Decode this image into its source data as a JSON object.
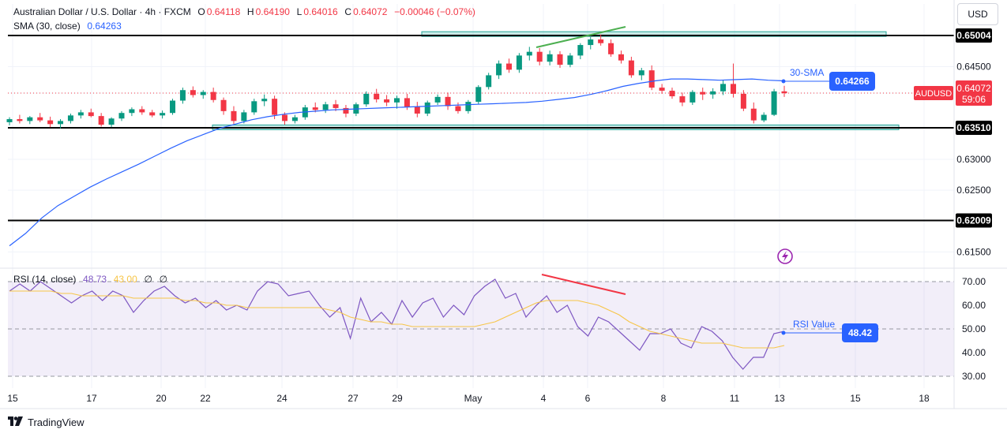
{
  "header": {
    "symbol_name": "Australian Dollar / U.S. Dollar · 4h · FXCM",
    "o_label": "O",
    "o_value": "0.64118",
    "h_label": "H",
    "h_value": "0.64190",
    "l_label": "L",
    "l_value": "0.64016",
    "c_label": "C",
    "c_value": "0.64072",
    "change": "−0.00046 (−0.07%)",
    "sma_label": "SMA (30, close)",
    "sma_value": "0.64263",
    "rsi_label": "RSI (14, close)",
    "rsi_value": "48.73",
    "rsi_ma_value": "43.00",
    "rsi_extra1": "∅",
    "rsi_extra2": "∅"
  },
  "currency_unit": "USD",
  "brand": "TradingView",
  "colors": {
    "up": "#089981",
    "down": "#f23645",
    "sma": "#2962ff",
    "rsi": "#7e57c2",
    "rsi_ma": "#f7c548",
    "divergence_green": "#4caf50",
    "divergence_red": "#f23645",
    "zone": "#26a69a",
    "tag_blue": "#2962ff"
  },
  "chart_data": [
    {
      "type": "candlestick",
      "title": "Australian Dollar / U.S. Dollar · 4h · FXCM",
      "ylim": [
        0.6118,
        0.654
      ],
      "y_ticks": [
        "0.65004",
        "0.64500",
        "0.64072",
        "0.63510",
        "0.63000",
        "0.62500",
        "0.62009",
        "0.61500"
      ],
      "x_ticks": [
        "15",
        "17",
        "20",
        "22",
        "24",
        "27",
        "29",
        "May",
        "4",
        "6",
        "8",
        "11",
        "13",
        "15",
        "18"
      ],
      "last_price_label": "AUDUSD",
      "last_price": "0.64072",
      "countdown": "59:06",
      "horizontal_levels": [
        {
          "value": 0.65004,
          "label": "0.65004"
        },
        {
          "value": 0.6351,
          "label": "0.63510"
        },
        {
          "value": 0.62009,
          "label": "0.62009"
        }
      ],
      "zones": [
        {
          "from": 0.6499,
          "to": 0.6504
        },
        {
          "from": 0.6348,
          "to": 0.6353
        }
      ],
      "annotations": [
        {
          "text": "30-SMA",
          "value_tag": "0.64266"
        }
      ],
      "sma_30": [
        0.616,
        0.618,
        0.6205,
        0.6225,
        0.624,
        0.6255,
        0.6268,
        0.628,
        0.6292,
        0.6305,
        0.6318,
        0.633,
        0.634,
        0.635,
        0.6357,
        0.6364,
        0.6369,
        0.6373,
        0.6376,
        0.6378,
        0.638,
        0.6381,
        0.6382,
        0.6383,
        0.6384,
        0.6385,
        0.6386,
        0.6387,
        0.6388,
        0.6389,
        0.639,
        0.6391,
        0.6392,
        0.6394,
        0.6397,
        0.64,
        0.6405,
        0.6411,
        0.6418,
        0.6423,
        0.6427,
        0.643,
        0.643,
        0.6429,
        0.6428,
        0.6429,
        0.643,
        0.6428,
        0.6427
      ],
      "ohlc": [
        [
          0.636,
          0.6368,
          0.6355,
          0.6365
        ],
        [
          0.6365,
          0.6372,
          0.6358,
          0.6362
        ],
        [
          0.6362,
          0.637,
          0.6357,
          0.6368
        ],
        [
          0.6368,
          0.6375,
          0.636,
          0.6363
        ],
        [
          0.6363,
          0.6369,
          0.6352,
          0.6357
        ],
        [
          0.6357,
          0.6365,
          0.635,
          0.6362
        ],
        [
          0.6362,
          0.6374,
          0.6358,
          0.6371
        ],
        [
          0.6371,
          0.638,
          0.6366,
          0.6376
        ],
        [
          0.6376,
          0.6382,
          0.6368,
          0.637
        ],
        [
          0.637,
          0.6375,
          0.6353,
          0.6356
        ],
        [
          0.6356,
          0.6368,
          0.6352,
          0.6366
        ],
        [
          0.6366,
          0.6378,
          0.6362,
          0.6375
        ],
        [
          0.6375,
          0.6384,
          0.637,
          0.6381
        ],
        [
          0.6381,
          0.6386,
          0.6372,
          0.6376
        ],
        [
          0.6376,
          0.638,
          0.6368,
          0.6371
        ],
        [
          0.6371,
          0.6379,
          0.6366,
          0.6375
        ],
        [
          0.6375,
          0.6398,
          0.6372,
          0.6395
        ],
        [
          0.6395,
          0.6416,
          0.639,
          0.6412
        ],
        [
          0.6412,
          0.6418,
          0.64,
          0.6404
        ],
        [
          0.6404,
          0.6412,
          0.6398,
          0.6409
        ],
        [
          0.6409,
          0.6416,
          0.6392,
          0.6396
        ],
        [
          0.6396,
          0.64,
          0.6372,
          0.6378
        ],
        [
          0.6378,
          0.6386,
          0.6357,
          0.6362
        ],
        [
          0.6362,
          0.638,
          0.6358,
          0.6376
        ],
        [
          0.6376,
          0.6398,
          0.6372,
          0.6394
        ],
        [
          0.6394,
          0.6405,
          0.6386,
          0.6398
        ],
        [
          0.6398,
          0.6403,
          0.6365,
          0.6372
        ],
        [
          0.6372,
          0.6376,
          0.6356,
          0.6362
        ],
        [
          0.6362,
          0.6372,
          0.6358,
          0.6368
        ],
        [
          0.6368,
          0.6388,
          0.6364,
          0.6384
        ],
        [
          0.6384,
          0.6392,
          0.6376,
          0.638
        ],
        [
          0.638,
          0.6393,
          0.6375,
          0.6389
        ],
        [
          0.6389,
          0.6396,
          0.6378,
          0.6383
        ],
        [
          0.6383,
          0.6388,
          0.6368,
          0.6374
        ],
        [
          0.6374,
          0.6392,
          0.637,
          0.6389
        ],
        [
          0.6389,
          0.641,
          0.6385,
          0.6406
        ],
        [
          0.6406,
          0.6414,
          0.6392,
          0.6397
        ],
        [
          0.6397,
          0.6404,
          0.6386,
          0.6392
        ],
        [
          0.6392,
          0.6403,
          0.6382,
          0.6399
        ],
        [
          0.6399,
          0.6406,
          0.638,
          0.6385
        ],
        [
          0.6385,
          0.6393,
          0.6368,
          0.6374
        ],
        [
          0.6374,
          0.6395,
          0.637,
          0.6392
        ],
        [
          0.6392,
          0.6405,
          0.6388,
          0.6401
        ],
        [
          0.6401,
          0.6408,
          0.638,
          0.6386
        ],
        [
          0.6386,
          0.6392,
          0.6374,
          0.6378
        ],
        [
          0.6378,
          0.6396,
          0.6374,
          0.6393
        ],
        [
          0.6393,
          0.642,
          0.6389,
          0.6417
        ],
        [
          0.6417,
          0.644,
          0.6413,
          0.6436
        ],
        [
          0.6436,
          0.646,
          0.643,
          0.6455
        ],
        [
          0.6455,
          0.6463,
          0.644,
          0.6445
        ],
        [
          0.6445,
          0.6472,
          0.644,
          0.6468
        ],
        [
          0.6468,
          0.6482,
          0.646,
          0.6474
        ],
        [
          0.6474,
          0.648,
          0.6452,
          0.6458
        ],
        [
          0.6458,
          0.6476,
          0.6452,
          0.647
        ],
        [
          0.647,
          0.6475,
          0.6448,
          0.6453
        ],
        [
          0.6453,
          0.6472,
          0.6449,
          0.6468
        ],
        [
          0.6468,
          0.6488,
          0.6462,
          0.6485
        ],
        [
          0.6485,
          0.6498,
          0.6478,
          0.6494
        ],
        [
          0.6494,
          0.6502,
          0.6484,
          0.6488
        ],
        [
          0.6488,
          0.6494,
          0.6466,
          0.647
        ],
        [
          0.647,
          0.6476,
          0.6455,
          0.646
        ],
        [
          0.646,
          0.6466,
          0.6432,
          0.6436
        ],
        [
          0.6436,
          0.6448,
          0.6428,
          0.6444
        ],
        [
          0.6444,
          0.6452,
          0.6412,
          0.6416
        ],
        [
          0.6416,
          0.6422,
          0.6406,
          0.6411
        ],
        [
          0.6411,
          0.6416,
          0.6398,
          0.6402
        ],
        [
          0.6402,
          0.6408,
          0.6386,
          0.6392
        ],
        [
          0.6392,
          0.6412,
          0.6388,
          0.6409
        ],
        [
          0.6409,
          0.6416,
          0.6396,
          0.6405
        ],
        [
          0.6405,
          0.6415,
          0.6398,
          0.641
        ],
        [
          0.641,
          0.6428,
          0.6404,
          0.6422
        ],
        [
          0.6422,
          0.6455,
          0.64,
          0.6406
        ],
        [
          0.6406,
          0.6412,
          0.6378,
          0.6382
        ],
        [
          0.6382,
          0.6392,
          0.6358,
          0.6363
        ],
        [
          0.6363,
          0.6376,
          0.636,
          0.6372
        ],
        [
          0.6372,
          0.6414,
          0.637,
          0.641
        ],
        [
          0.641,
          0.6419,
          0.6401,
          0.6407
        ]
      ]
    },
    {
      "type": "line",
      "title": "RSI (14, close)",
      "ylim": [
        25,
        75
      ],
      "y_ticks": [
        "70.00",
        "60.00",
        "50.00",
        "40.00",
        "30.00"
      ],
      "bands": [
        30,
        50,
        70
      ],
      "annotations": [
        {
          "text": "RSI Value",
          "value_tag": "48.42"
        }
      ],
      "series": [
        {
          "name": "RSI",
          "values": [
            66,
            69,
            66,
            70,
            67,
            64,
            61,
            64,
            66,
            62,
            66,
            64,
            57,
            62,
            66,
            68,
            64,
            61,
            63,
            59,
            62,
            58,
            60,
            58,
            66,
            70,
            69,
            64,
            65,
            66,
            60,
            55,
            59,
            46,
            63,
            53,
            57,
            52,
            62,
            55,
            61,
            63,
            55,
            60,
            56,
            64,
            68,
            71,
            63,
            65,
            55,
            60,
            64,
            57,
            60,
            51,
            47,
            55,
            53,
            49,
            45,
            41,
            48,
            48,
            50,
            44,
            42,
            51,
            49,
            45,
            38,
            33,
            38,
            38,
            48,
            49
          ]
        },
        {
          "name": "MA",
          "values": [
            66,
            66,
            66,
            66,
            66,
            65,
            65,
            64,
            64,
            64,
            64,
            64,
            63,
            63,
            63,
            63,
            63,
            62,
            62,
            61,
            61,
            60,
            60,
            59,
            59,
            59,
            59,
            59,
            59,
            59,
            59,
            58,
            57,
            55,
            54,
            53,
            53,
            52,
            52,
            51,
            51,
            51,
            51,
            51,
            51,
            51,
            52,
            53,
            55,
            57,
            59,
            61,
            62,
            62,
            62,
            62,
            61,
            60,
            58,
            56,
            53,
            51,
            49,
            48,
            47,
            46,
            45,
            44,
            44,
            44,
            43,
            42,
            42,
            42,
            42,
            43
          ]
        }
      ]
    }
  ]
}
